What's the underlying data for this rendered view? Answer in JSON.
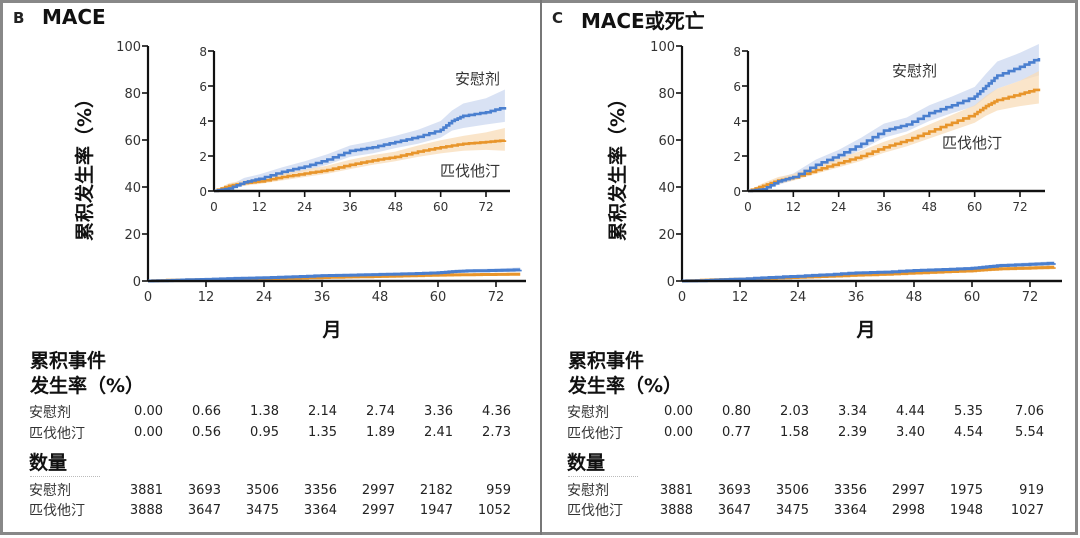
{
  "colors": {
    "placebo": "#4a7fcf",
    "placebo_band": "#c9d6f0",
    "pitavastatin": "#e8952b",
    "pitavastatin_band": "#f8dcb8",
    "axis": "#111111",
    "border": "#888888"
  },
  "chart_data": [
    {
      "panel_letter": "B",
      "title": "MACE",
      "type": "line",
      "xlabel": "月",
      "ylabel": "累积发生率（%）",
      "xlim": [
        0,
        77
      ],
      "ylim": [
        0,
        100
      ],
      "xticks": [
        "0",
        "12",
        "24",
        "36",
        "48",
        "60",
        "72"
      ],
      "yticks": [
        "0",
        "20",
        "40",
        "60",
        "80",
        "100"
      ],
      "inset": {
        "xlim": [
          0,
          77
        ],
        "ylim": [
          0,
          8
        ],
        "xticks": [
          "0",
          "12",
          "24",
          "36",
          "48",
          "60",
          "72"
        ],
        "yticks": [
          "0",
          "2",
          "4",
          "6",
          "8"
        ],
        "placebo_label": "安慰剂",
        "pitavastatin_label": "匹伐他汀"
      },
      "series": [
        {
          "name": "安慰剂",
          "x": [
            0,
            4,
            8,
            12,
            18,
            24,
            30,
            36,
            42,
            48,
            54,
            60,
            63,
            66,
            72,
            77
          ],
          "y": [
            0,
            0.15,
            0.5,
            0.7,
            1.1,
            1.4,
            1.8,
            2.3,
            2.5,
            2.8,
            3.1,
            3.5,
            4.0,
            4.3,
            4.5,
            4.8
          ],
          "lower": [
            0,
            0.05,
            0.3,
            0.5,
            0.85,
            1.15,
            1.5,
            1.95,
            2.15,
            2.45,
            2.7,
            3.05,
            3.45,
            3.6,
            3.8,
            3.95
          ],
          "upper": [
            0,
            0.3,
            0.75,
            0.95,
            1.35,
            1.7,
            2.1,
            2.6,
            2.85,
            3.15,
            3.5,
            4.0,
            4.6,
            5.0,
            5.3,
            5.8
          ]
        },
        {
          "name": "匹伐他汀",
          "x": [
            0,
            4,
            8,
            12,
            18,
            24,
            30,
            36,
            42,
            48,
            54,
            60,
            66,
            72,
            77
          ],
          "y": [
            0,
            0.3,
            0.45,
            0.55,
            0.8,
            1.0,
            1.2,
            1.5,
            1.75,
            1.95,
            2.25,
            2.5,
            2.7,
            2.8,
            2.9
          ],
          "lower": [
            0,
            0.15,
            0.3,
            0.4,
            0.6,
            0.8,
            0.98,
            1.25,
            1.5,
            1.7,
            1.95,
            2.15,
            2.3,
            2.35,
            2.3
          ],
          "upper": [
            0,
            0.45,
            0.6,
            0.72,
            1.0,
            1.22,
            1.45,
            1.78,
            2.05,
            2.25,
            2.6,
            2.9,
            3.15,
            3.35,
            3.6
          ]
        }
      ],
      "table": {
        "rate_heading_line1": "累积事件",
        "rate_heading_line2": "发生率（%）",
        "rate_rows": [
          {
            "label": "安慰剂",
            "values": [
              "0.00",
              "0.66",
              "1.38",
              "2.14",
              "2.74",
              "3.36",
              "4.36"
            ]
          },
          {
            "label": "匹伐他汀",
            "values": [
              "0.00",
              "0.56",
              "0.95",
              "1.35",
              "1.89",
              "2.41",
              "2.73"
            ]
          }
        ],
        "count_heading": "数量",
        "count_rows": [
          {
            "label": "安慰剂",
            "values": [
              "3881",
              "3693",
              "3506",
              "3356",
              "2997",
              "2182",
              "959"
            ]
          },
          {
            "label": "匹伐他汀",
            "values": [
              "3888",
              "3647",
              "3475",
              "3364",
              "2997",
              "1947",
              "1052"
            ]
          }
        ]
      }
    },
    {
      "panel_letter": "C",
      "title": "MACE或死亡",
      "type": "line",
      "xlabel": "月",
      "ylabel": "累积发生率（%）",
      "xlim": [
        0,
        77
      ],
      "ylim": [
        0,
        100
      ],
      "xticks": [
        "0",
        "12",
        "24",
        "36",
        "48",
        "60",
        "72"
      ],
      "yticks": [
        "0",
        "20",
        "40",
        "60",
        "80",
        "100"
      ],
      "inset": {
        "xlim": [
          0,
          77
        ],
        "ylim": [
          0,
          8
        ],
        "xticks": [
          "0",
          "12",
          "24",
          "36",
          "48",
          "60",
          "72"
        ],
        "yticks": [
          "0",
          "2",
          "4",
          "6",
          "8"
        ],
        "placebo_label": "安慰剂",
        "pitavastatin_label": "匹伐他汀"
      },
      "series": [
        {
          "name": "安慰剂",
          "x": [
            0,
            4,
            8,
            12,
            18,
            24,
            30,
            36,
            42,
            48,
            54,
            60,
            63,
            66,
            72,
            77
          ],
          "y": [
            0,
            0.1,
            0.55,
            0.8,
            1.5,
            2.05,
            2.7,
            3.45,
            3.8,
            4.45,
            4.9,
            5.4,
            6.0,
            6.6,
            7.1,
            7.6
          ],
          "lower": [
            0,
            0.02,
            0.35,
            0.6,
            1.25,
            1.75,
            2.35,
            3.05,
            3.4,
            4.0,
            4.45,
            4.85,
            5.35,
            5.85,
            6.3,
            6.6
          ],
          "upper": [
            0,
            0.25,
            0.75,
            1.0,
            1.8,
            2.35,
            3.05,
            3.85,
            4.2,
            4.9,
            5.4,
            5.95,
            6.7,
            7.4,
            7.9,
            8.4
          ]
        },
        {
          "name": "匹伐他汀",
          "x": [
            0,
            4,
            8,
            12,
            18,
            24,
            30,
            36,
            42,
            48,
            54,
            60,
            63,
            66,
            72,
            77
          ],
          "y": [
            0,
            0.3,
            0.6,
            0.77,
            1.2,
            1.6,
            2.0,
            2.5,
            2.9,
            3.4,
            3.9,
            4.4,
            4.85,
            5.2,
            5.55,
            5.85
          ],
          "lower": [
            0,
            0.15,
            0.4,
            0.58,
            0.98,
            1.35,
            1.72,
            2.18,
            2.55,
            3.0,
            3.45,
            3.9,
            4.3,
            4.6,
            4.85,
            5.0
          ],
          "upper": [
            0,
            0.45,
            0.8,
            0.97,
            1.45,
            1.85,
            2.3,
            2.82,
            3.25,
            3.8,
            4.35,
            4.9,
            5.45,
            5.85,
            6.3,
            6.85
          ]
        }
      ],
      "table": {
        "rate_heading_line1": "累积事件",
        "rate_heading_line2": "发生率（%）",
        "rate_rows": [
          {
            "label": "安慰剂",
            "values": [
              "0.00",
              "0.80",
              "2.03",
              "3.34",
              "4.44",
              "5.35",
              "7.06"
            ]
          },
          {
            "label": "匹伐他汀",
            "values": [
              "0.00",
              "0.77",
              "1.58",
              "2.39",
              "3.40",
              "4.54",
              "5.54"
            ]
          }
        ],
        "count_heading": "数量",
        "count_rows": [
          {
            "label": "安慰剂",
            "values": [
              "3881",
              "3693",
              "3506",
              "3356",
              "2997",
              "1975",
              "919"
            ]
          },
          {
            "label": "匹伐他汀",
            "values": [
              "3888",
              "3647",
              "3475",
              "3364",
              "2998",
              "1948",
              "1027"
            ]
          }
        ]
      }
    }
  ]
}
